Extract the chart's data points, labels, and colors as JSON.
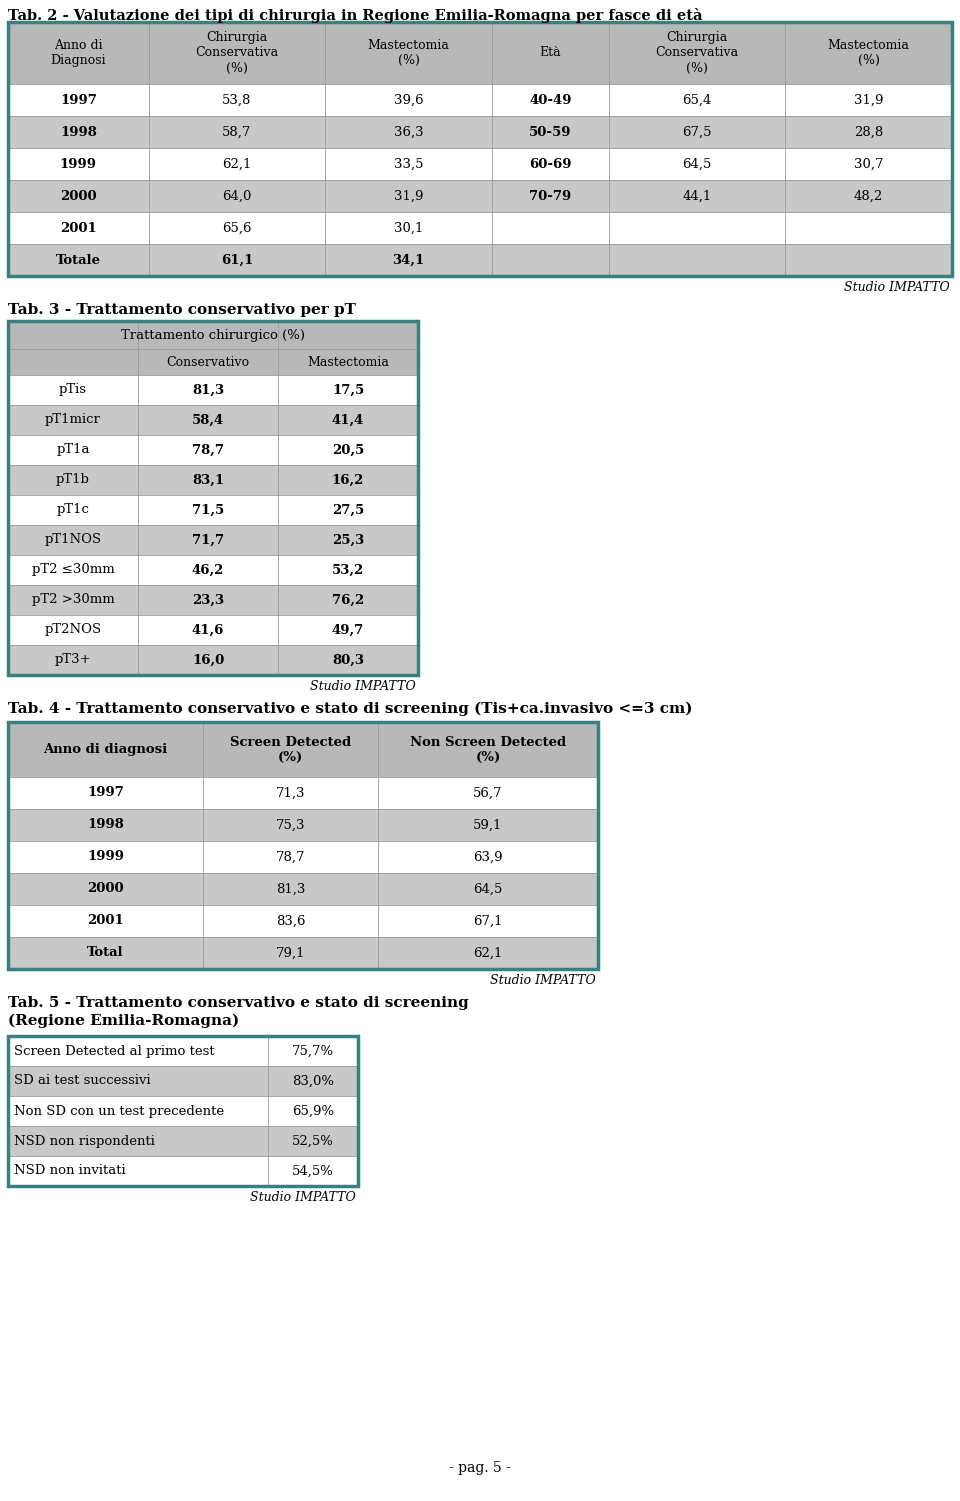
{
  "bg_color": "#ffffff",
  "table_border_color": "#3a8080",
  "header_bg": "#b8b8b8",
  "row_bg_light": "#ffffff",
  "row_bg_gray": "#c8c8c8",
  "tab2_title": "Tab. 2 - Valutazione dei tipi di chirurgia in Regione Emilia-Romagna per fasce di età",
  "tab2_col_headers": [
    "Anno di\nDiagnosi",
    "Chirurgia\nConservativa\n(%)",
    "Mastectomia\n(%)",
    "Età",
    "Chirurgia\nConservativa\n(%)",
    "Mastectomia\n(%)"
  ],
  "tab2_rows": [
    [
      "1997",
      "53,8",
      "39,6",
      "40-49",
      "65,4",
      "31,9"
    ],
    [
      "1998",
      "58,7",
      "36,3",
      "50-59",
      "67,5",
      "28,8"
    ],
    [
      "1999",
      "62,1",
      "33,5",
      "60-69",
      "64,5",
      "30,7"
    ],
    [
      "2000",
      "64,0",
      "31,9",
      "70-79",
      "44,1",
      "48,2"
    ],
    [
      "2001",
      "65,6",
      "30,1",
      "",
      "",
      ""
    ],
    [
      "Totale",
      "61,1",
      "34,1",
      "",
      "",
      ""
    ]
  ],
  "tab3_title": "Tab. 3 - Trattamento conservativo per pT",
  "tab3_rows": [
    [
      "pTis",
      "81,3",
      "17,5"
    ],
    [
      "pT1micr",
      "58,4",
      "41,4"
    ],
    [
      "pT1a",
      "78,7",
      "20,5"
    ],
    [
      "pT1b",
      "83,1",
      "16,2"
    ],
    [
      "pT1c",
      "71,5",
      "27,5"
    ],
    [
      "pT1NOS",
      "71,7",
      "25,3"
    ],
    [
      "pT2 ≤30mm",
      "46,2",
      "53,2"
    ],
    [
      "pT2 >30mm",
      "23,3",
      "76,2"
    ],
    [
      "pT2NOS",
      "41,6",
      "49,7"
    ],
    [
      "pT3+",
      "16,0",
      "80,3"
    ]
  ],
  "tab4_title": "Tab. 4 - Trattamento conservativo e stato di screening (Tis+ca.invasivo <=3 cm)",
  "tab4_rows": [
    [
      "1997",
      "71,3",
      "56,7"
    ],
    [
      "1998",
      "75,3",
      "59,1"
    ],
    [
      "1999",
      "78,7",
      "63,9"
    ],
    [
      "2000",
      "81,3",
      "64,5"
    ],
    [
      "2001",
      "83,6",
      "67,1"
    ],
    [
      "Total",
      "79,1",
      "62,1"
    ]
  ],
  "tab5_title_line1": "Tab. 5 - Trattamento conservativo e stato di screening",
  "tab5_title_line2": "(Regione Emilia-Romagna)",
  "tab5_rows": [
    [
      "Screen Detected al primo test",
      "75,7%"
    ],
    [
      "SD ai test successivi",
      "83,0%"
    ],
    [
      "Non SD con un test precedente",
      "65,9%"
    ],
    [
      "NSD non rispondenti",
      "52,5%"
    ],
    [
      "NSD non invitati",
      "54,5%"
    ]
  ],
  "studio_impatto": "Studio IMPATTO",
  "page_label": "- pag. 5 -"
}
